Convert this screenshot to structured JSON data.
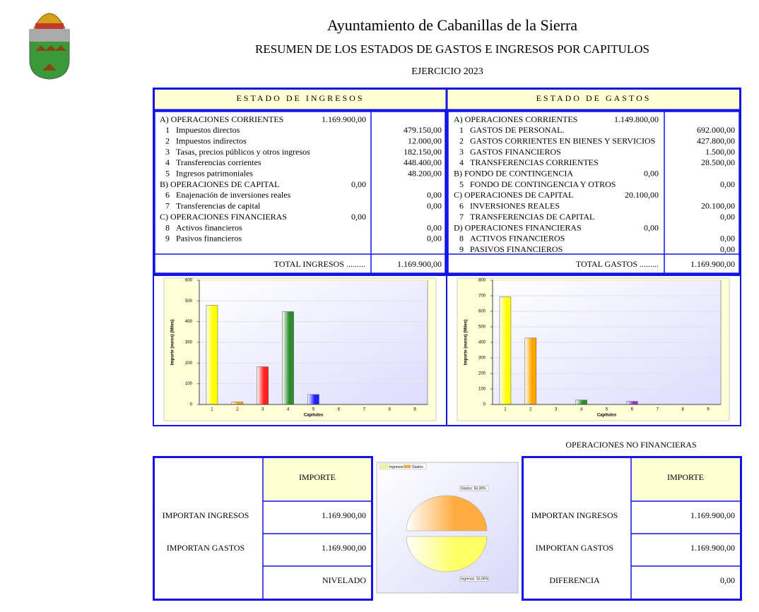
{
  "header": {
    "title": "Ayuntamiento de Cabanillas de la Sierra",
    "subtitle": "RESUMEN DE LOS ESTADOS DE GASTOS E INGRESOS POR CAPITULOS",
    "year": "EJERCICIO 2023"
  },
  "ingresos": {
    "heading": "ESTADO DE INGRESOS",
    "rows": [
      {
        "label": "A) OPERACIONES CORRIENTES",
        "subtotal": "1.169.900,00"
      },
      {
        "num": "1",
        "label": "Impuestos directos",
        "amount": "479.150,00"
      },
      {
        "num": "2",
        "label": "Impuestos indirectos",
        "amount": "12.000,00"
      },
      {
        "num": "3",
        "label": "Tasas, precios públicos y otros ingresos",
        "amount": "182.150,00"
      },
      {
        "num": "4",
        "label": "Transferencias corrientes",
        "amount": "448.400,00"
      },
      {
        "num": "5",
        "label": "Ingresos patrimoniales",
        "amount": "48.200,00"
      },
      {
        "label": "B) OPERACIONES DE CAPITAL",
        "subtotal": "0,00"
      },
      {
        "num": "6",
        "label": "Enajenación de inversiones reales",
        "amount": "0,00"
      },
      {
        "num": "7",
        "label": "Transferencias de capital",
        "amount": "0,00"
      },
      {
        "label": "C) OPERACIONES FINANCIERAS",
        "subtotal": "0,00"
      },
      {
        "num": "8",
        "label": "Activos financieros",
        "amount": "0,00"
      },
      {
        "num": "9",
        "label": "Pasivos financieros",
        "amount": "0,00"
      }
    ],
    "total_label": "TOTAL INGRESOS .........",
    "total": "1.169.900,00"
  },
  "gastos": {
    "heading": "ESTADO DE GASTOS",
    "rows": [
      {
        "label": "A) OPERACIONES CORRIENTES",
        "subtotal": "1.149.800,00"
      },
      {
        "num": "1",
        "label": "GASTOS DE PERSONAL.",
        "amount": "692.000,00"
      },
      {
        "num": "2",
        "label": "GASTOS CORRIENTES EN BIENES Y SERVICIOS",
        "amount": "427.800,00"
      },
      {
        "num": "3",
        "label": "GASTOS FINANCIEROS",
        "amount": "1.500,00"
      },
      {
        "num": "4",
        "label": "TRANSFERENCIAS CORRIENTES",
        "amount": "28.500,00"
      },
      {
        "label": "B) FONDO DE CONTINGENCIA",
        "subtotal": "0,00"
      },
      {
        "num": "5",
        "label": "FONDO DE CONTINGENCIA Y OTROS",
        "amount": "0,00"
      },
      {
        "label": "C) OPERACIONES DE CAPITAL",
        "subtotal": "20.100,00"
      },
      {
        "num": "6",
        "label": "INVERSIONES REALES",
        "amount": "20.100,00"
      },
      {
        "num": "7",
        "label": "TRANSFERENCIAS DE CAPITAL",
        "amount": "0,00"
      },
      {
        "label": "D) OPERACIONES FINANCIERAS",
        "subtotal": "0,00"
      },
      {
        "num": "8",
        "label": "ACTIVOS FINANCIEROS",
        "amount": "0,00"
      },
      {
        "num": "9",
        "label": "PASIVOS FINANCIEROS",
        "amount": "0,00"
      }
    ],
    "total_label": "TOTAL GASTOS .........",
    "total": "1.169.900,00"
  },
  "chart_data": [
    {
      "type": "bar",
      "categories": [
        "1",
        "2",
        "3",
        "4",
        "5",
        "6",
        "7",
        "8",
        "9"
      ],
      "values": [
        479.15,
        12,
        182.15,
        448.4,
        48.2,
        0,
        0,
        0,
        0
      ],
      "colors": [
        "#ffff00",
        "#ffa500",
        "#ff2020",
        "#2e8b2e",
        "#2020ff",
        "#9932cc",
        "#808080",
        "#808080",
        "#808080"
      ],
      "xlabel": "Capitulos",
      "ylabel": "Importe (euros) (Miles)",
      "ylim": [
        0,
        600
      ],
      "yticks": [
        0,
        100,
        200,
        300,
        400,
        500,
        600
      ],
      "grid": true
    },
    {
      "type": "bar",
      "categories": [
        "1",
        "2",
        "3",
        "4",
        "5",
        "6",
        "7",
        "8",
        "9"
      ],
      "values": [
        692,
        427.8,
        1.5,
        28.5,
        0,
        20.1,
        0,
        0,
        0
      ],
      "colors": [
        "#ffff00",
        "#ffa500",
        "#ff2020",
        "#2e8b2e",
        "#2020ff",
        "#9932cc",
        "#808080",
        "#808080",
        "#808080"
      ],
      "xlabel": "Capitulos",
      "ylabel": "Importe (euros) (Miles)",
      "ylim": [
        0,
        800
      ],
      "yticks": [
        0,
        100,
        200,
        300,
        400,
        500,
        600,
        700,
        800
      ],
      "grid": true
    },
    {
      "type": "pie",
      "categories": [
        "Ingresos",
        "Gastos"
      ],
      "values": [
        50,
        50
      ],
      "value_labels": [
        "Ingresos: 50,00%",
        "Gastos: 50,00%"
      ],
      "colors": [
        "#ffff66",
        "#ffad40"
      ],
      "legend": "top-left"
    }
  ],
  "summary": {
    "caption": "OPERACIONES NO FINANCIERAS",
    "left": {
      "header": "IMPORTE",
      "rows": [
        [
          "IMPORTAN INGRESOS",
          "1.169.900,00"
        ],
        [
          "IMPORTAN GASTOS",
          "1.169.900,00"
        ]
      ],
      "result": "NIVELADO"
    },
    "right": {
      "header": "IMPORTE",
      "rows": [
        [
          "IMPORTAN INGRESOS",
          "1.169.900,00"
        ],
        [
          "IMPORTAN GASTOS",
          "1.169.900,00"
        ]
      ],
      "result_label": "DIFERENCIA",
      "result": "0,00"
    }
  }
}
